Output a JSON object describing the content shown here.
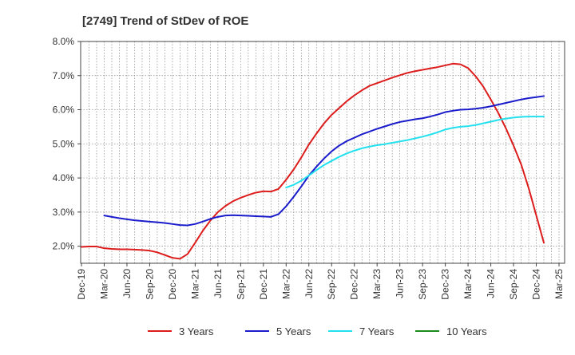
{
  "chart_data": {
    "type": "line",
    "title": "[2749]  Trend of StDev of ROE",
    "y_ticks": [
      "2.0%",
      "3.0%",
      "4.0%",
      "5.0%",
      "6.0%",
      "7.0%",
      "8.0%"
    ],
    "ylim": [
      1.5,
      8.0
    ],
    "x_ticks": [
      "Dec-19",
      "Mar-20",
      "Jun-20",
      "Sep-20",
      "Dec-20",
      "Mar-21",
      "Jun-21",
      "Sep-21",
      "Dec-21",
      "Mar-22",
      "Jun-22",
      "Sep-22",
      "Dec-22",
      "Mar-23",
      "Jun-23",
      "Sep-23",
      "Dec-23",
      "Mar-24",
      "Jun-24",
      "Sep-24",
      "Dec-24",
      "Mar-25"
    ],
    "grid": true,
    "legend_position": "bottom",
    "series": [
      {
        "name": "3 Years",
        "color": "#dd1c1c",
        "points": [
          [
            "Dec-19",
            1.98
          ],
          [
            "Jan-20",
            1.99
          ],
          [
            "Feb-20",
            1.99
          ],
          [
            "Mar-20",
            1.94
          ],
          [
            "Apr-20",
            1.92
          ],
          [
            "May-20",
            1.91
          ],
          [
            "Jun-20",
            1.91
          ],
          [
            "Jul-20",
            1.9
          ],
          [
            "Aug-20",
            1.89
          ],
          [
            "Sep-20",
            1.87
          ],
          [
            "Oct-20",
            1.82
          ],
          [
            "Nov-20",
            1.74
          ],
          [
            "Dec-20",
            1.66
          ],
          [
            "Jan-21",
            1.63
          ],
          [
            "Feb-21",
            1.77
          ],
          [
            "Mar-21",
            2.1
          ],
          [
            "Apr-21",
            2.45
          ],
          [
            "May-21",
            2.75
          ],
          [
            "Jun-21",
            3.0
          ],
          [
            "Jul-21",
            3.18
          ],
          [
            "Aug-21",
            3.32
          ],
          [
            "Sep-21",
            3.42
          ],
          [
            "Oct-21",
            3.5
          ],
          [
            "Nov-21",
            3.57
          ],
          [
            "Dec-21",
            3.61
          ],
          [
            "Jan-22",
            3.6
          ],
          [
            "Feb-22",
            3.68
          ],
          [
            "Mar-22",
            3.95
          ],
          [
            "Apr-22",
            4.25
          ],
          [
            "May-22",
            4.6
          ],
          [
            "Jun-22",
            4.98
          ],
          [
            "Jul-22",
            5.3
          ],
          [
            "Aug-22",
            5.6
          ],
          [
            "Sep-22",
            5.85
          ],
          [
            "Oct-22",
            6.05
          ],
          [
            "Nov-22",
            6.25
          ],
          [
            "Dec-22",
            6.42
          ],
          [
            "Jan-23",
            6.57
          ],
          [
            "Feb-23",
            6.7
          ],
          [
            "Mar-23",
            6.78
          ],
          [
            "Apr-23",
            6.86
          ],
          [
            "May-23",
            6.94
          ],
          [
            "Jun-23",
            7.01
          ],
          [
            "Jul-23",
            7.08
          ],
          [
            "Aug-23",
            7.13
          ],
          [
            "Sep-23",
            7.17
          ],
          [
            "Oct-23",
            7.21
          ],
          [
            "Nov-23",
            7.25
          ],
          [
            "Dec-23",
            7.3
          ],
          [
            "Jan-24",
            7.35
          ],
          [
            "Feb-24",
            7.33
          ],
          [
            "Mar-24",
            7.22
          ],
          [
            "Apr-24",
            6.98
          ],
          [
            "May-24",
            6.68
          ],
          [
            "Jun-24",
            6.3
          ],
          [
            "Jul-24",
            5.9
          ],
          [
            "Aug-24",
            5.45
          ],
          [
            "Sep-24",
            4.95
          ],
          [
            "Oct-24",
            4.4
          ],
          [
            "Nov-24",
            3.7
          ],
          [
            "Dec-24",
            2.9
          ],
          [
            "Jan-25",
            2.1
          ]
        ]
      },
      {
        "name": "5 Years",
        "color": "#1a1ccc",
        "points": [
          [
            "Mar-20",
            2.9
          ],
          [
            "Apr-20",
            2.86
          ],
          [
            "May-20",
            2.82
          ],
          [
            "Jun-20",
            2.79
          ],
          [
            "Jul-20",
            2.76
          ],
          [
            "Aug-20",
            2.74
          ],
          [
            "Sep-20",
            2.72
          ],
          [
            "Oct-20",
            2.7
          ],
          [
            "Nov-20",
            2.68
          ],
          [
            "Dec-20",
            2.65
          ],
          [
            "Jan-21",
            2.62
          ],
          [
            "Feb-21",
            2.61
          ],
          [
            "Mar-21",
            2.65
          ],
          [
            "Apr-21",
            2.72
          ],
          [
            "May-21",
            2.8
          ],
          [
            "Jun-21",
            2.86
          ],
          [
            "Jul-21",
            2.9
          ],
          [
            "Aug-21",
            2.91
          ],
          [
            "Sep-21",
            2.9
          ],
          [
            "Oct-21",
            2.89
          ],
          [
            "Nov-21",
            2.88
          ],
          [
            "Dec-21",
            2.87
          ],
          [
            "Jan-22",
            2.86
          ],
          [
            "Feb-22",
            2.94
          ],
          [
            "Mar-22",
            3.17
          ],
          [
            "Apr-22",
            3.45
          ],
          [
            "May-22",
            3.75
          ],
          [
            "Jun-22",
            4.07
          ],
          [
            "Jul-22",
            4.33
          ],
          [
            "Aug-22",
            4.57
          ],
          [
            "Sep-22",
            4.78
          ],
          [
            "Oct-22",
            4.95
          ],
          [
            "Nov-22",
            5.08
          ],
          [
            "Dec-22",
            5.18
          ],
          [
            "Jan-23",
            5.28
          ],
          [
            "Feb-23",
            5.36
          ],
          [
            "Mar-23",
            5.44
          ],
          [
            "Apr-23",
            5.51
          ],
          [
            "May-23",
            5.58
          ],
          [
            "Jun-23",
            5.64
          ],
          [
            "Jul-23",
            5.68
          ],
          [
            "Aug-23",
            5.72
          ],
          [
            "Sep-23",
            5.75
          ],
          [
            "Oct-23",
            5.8
          ],
          [
            "Nov-23",
            5.86
          ],
          [
            "Dec-23",
            5.93
          ],
          [
            "Jan-24",
            5.97
          ],
          [
            "Feb-24",
            6.0
          ],
          [
            "Mar-24",
            6.01
          ],
          [
            "Apr-24",
            6.03
          ],
          [
            "May-24",
            6.06
          ],
          [
            "Jun-24",
            6.1
          ],
          [
            "Jul-24",
            6.15
          ],
          [
            "Aug-24",
            6.2
          ],
          [
            "Sep-24",
            6.25
          ],
          [
            "Oct-24",
            6.3
          ],
          [
            "Nov-24",
            6.34
          ],
          [
            "Dec-24",
            6.37
          ],
          [
            "Jan-25",
            6.4
          ]
        ]
      },
      {
        "name": "7 Years",
        "color": "#22e0ee",
        "points": [
          [
            "Mar-22",
            3.72
          ],
          [
            "Apr-22",
            3.8
          ],
          [
            "May-22",
            3.92
          ],
          [
            "Jun-22",
            4.07
          ],
          [
            "Jul-22",
            4.23
          ],
          [
            "Aug-22",
            4.38
          ],
          [
            "Sep-22",
            4.5
          ],
          [
            "Oct-22",
            4.62
          ],
          [
            "Nov-22",
            4.72
          ],
          [
            "Dec-22",
            4.8
          ],
          [
            "Jan-23",
            4.87
          ],
          [
            "Feb-23",
            4.92
          ],
          [
            "Mar-23",
            4.96
          ],
          [
            "Apr-23",
            4.99
          ],
          [
            "May-23",
            5.03
          ],
          [
            "Jun-23",
            5.07
          ],
          [
            "Jul-23",
            5.11
          ],
          [
            "Aug-23",
            5.16
          ],
          [
            "Sep-23",
            5.21
          ],
          [
            "Oct-23",
            5.27
          ],
          [
            "Nov-23",
            5.34
          ],
          [
            "Dec-23",
            5.42
          ],
          [
            "Jan-24",
            5.47
          ],
          [
            "Feb-24",
            5.5
          ],
          [
            "Mar-24",
            5.52
          ],
          [
            "Apr-24",
            5.55
          ],
          [
            "May-24",
            5.6
          ],
          [
            "Jun-24",
            5.65
          ],
          [
            "Jul-24",
            5.7
          ],
          [
            "Aug-24",
            5.74
          ],
          [
            "Sep-24",
            5.77
          ],
          [
            "Oct-24",
            5.79
          ],
          [
            "Nov-24",
            5.8
          ],
          [
            "Dec-24",
            5.8
          ],
          [
            "Jan-25",
            5.8
          ]
        ]
      },
      {
        "name": "10 Years",
        "color": "#1a8a1a",
        "points": []
      }
    ]
  }
}
